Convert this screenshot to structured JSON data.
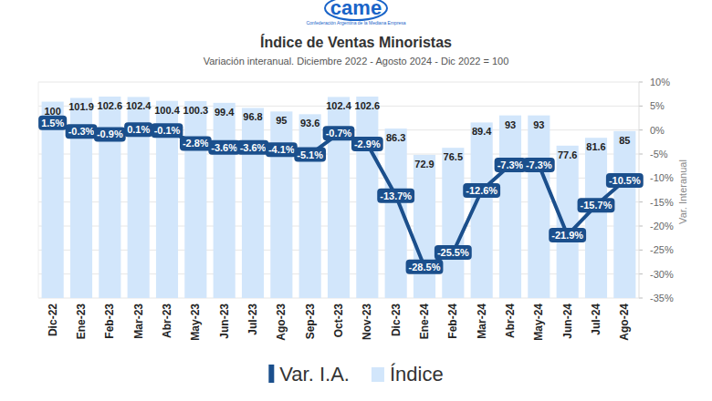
{
  "chart_data": {
    "type": "bar",
    "title": "Índice de Ventas Minoristas",
    "subtitle": "Variación interanual. Diciembre 2022 - Agosto 2024 - Dic 2022 = 100",
    "annotations": [
      "came",
      "Confederación Argentina de la Mediana Empresa"
    ],
    "y2label": "Var. Interanual",
    "categories": [
      "Dic-22",
      "Ene-23",
      "Feb-23",
      "Mar-23",
      "Abr-23",
      "May-23",
      "Jun-23",
      "Jul-23",
      "Ago-23",
      "Sep-23",
      "Oct-23",
      "Nov-23",
      "Dic-23",
      "Ene-24",
      "Feb-24",
      "Mar-24",
      "Abr-24",
      "May-24",
      "Jun-24",
      "Jul-24",
      "Ago-24"
    ],
    "series": [
      {
        "name": "Var. I.A.",
        "type": "line",
        "axis": "y2",
        "color": "#1b4f8c",
        "marker": "label-box",
        "line_style": "solid",
        "values": [
          1.5,
          -0.3,
          -0.9,
          0.1,
          -0.1,
          -2.8,
          -3.6,
          -3.6,
          -4.1,
          -5.1,
          -0.7,
          -2.9,
          -13.7,
          -28.5,
          -25.5,
          -12.6,
          -7.3,
          -7.3,
          -21.9,
          -15.7,
          -10.5
        ],
        "value_labels": [
          "1.5%",
          "-0.3%",
          "-0.9%",
          "0.1%",
          "-0.1%",
          "-2.8%",
          "-3.6%",
          "-3.6%",
          "-4.1%",
          "-5.1%",
          "-0.7%",
          "-2.9%",
          "-13.7%",
          "-28.5%",
          "-25.5%",
          "-12.6%",
          "-7.3%",
          "-7.3%",
          "-21.9%",
          "-15.7%",
          "-10.5%"
        ]
      },
      {
        "name": "Índice",
        "type": "bar",
        "color": "#d2e6fb",
        "values": [
          100,
          101.9,
          102.6,
          102.4,
          100.4,
          100.3,
          99.4,
          96.8,
          95,
          93.6,
          102.4,
          102.6,
          86.3,
          72.9,
          76.5,
          89.4,
          93,
          93,
          77.6,
          81.6,
          85
        ]
      }
    ],
    "ylim": [
      0,
      110
    ],
    "yticks": [],
    "y2lim": [
      -35,
      10
    ],
    "y2ticks": [
      {
        "value": 10,
        "label": "10%"
      },
      {
        "value": 5,
        "label": "5%"
      },
      {
        "value": 0,
        "label": "0%"
      },
      {
        "value": -5,
        "label": "-5%"
      },
      {
        "value": -10,
        "label": "-10%"
      },
      {
        "value": -15,
        "label": "-15%"
      },
      {
        "value": -20,
        "label": "-20%"
      },
      {
        "value": -25,
        "label": "-25%"
      },
      {
        "value": -30,
        "label": "-30%"
      },
      {
        "value": -35,
        "label": "-35%"
      }
    ],
    "grid": true,
    "legend": "bottom",
    "data_labels": true
  }
}
